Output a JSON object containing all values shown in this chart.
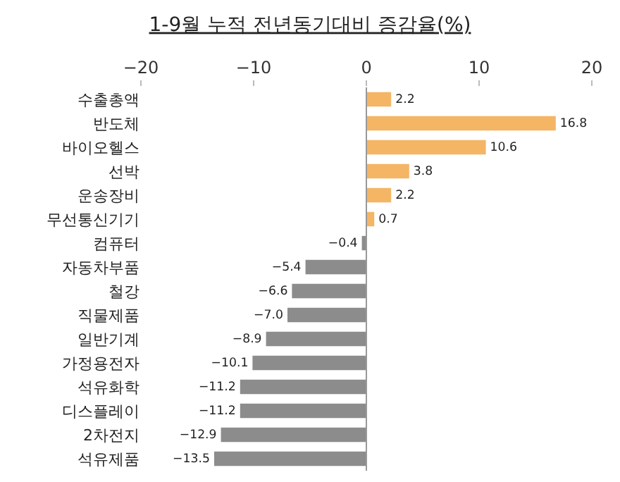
{
  "chart_data": {
    "type": "bar",
    "orientation": "horizontal",
    "title": "1-9월 누적 전년동기대비 증감율(%)",
    "categories": [
      "수출총액",
      "반도체",
      "바이오헬스",
      "선박",
      "운송장비",
      "무선통신기기",
      "컴퓨터",
      "자동차부품",
      "철강",
      "직물제품",
      "일반기계",
      "가정용전자",
      "석유화학",
      "디스플레이",
      "2차전지",
      "석유제품"
    ],
    "values": [
      2.2,
      16.8,
      10.6,
      3.8,
      2.2,
      0.7,
      -0.4,
      -5.4,
      -6.6,
      -7.0,
      -8.9,
      -10.1,
      -11.2,
      -11.2,
      -12.9,
      -13.5
    ],
    "value_labels": [
      "2.2",
      "16.8",
      "10.6",
      "3.8",
      "2.2",
      "0.7",
      "−0.4",
      "−5.4",
      "−6.6",
      "−7.0",
      "−8.9",
      "−10.1",
      "−11.2",
      "−11.2",
      "−12.9",
      "−13.5"
    ],
    "colors": [
      "#f4b565",
      "#f4b565",
      "#f4b565",
      "#f4b565",
      "#f4b565",
      "#f4b565",
      "#8c8c8c",
      "#8c8c8c",
      "#8c8c8c",
      "#8c8c8c",
      "#8c8c8c",
      "#8c8c8c",
      "#8c8c8c",
      "#8c8c8c",
      "#8c8c8c",
      "#8c8c8c"
    ],
    "xlim": [
      -20,
      20
    ],
    "xticks": [
      {
        "value": -20,
        "label": "−20"
      },
      {
        "value": -10,
        "label": "−10"
      },
      0,
      10,
      20
    ],
    "grid": false,
    "ref_lines": [
      {
        "axis": "x",
        "value": 0,
        "color": "#999999"
      }
    ]
  }
}
